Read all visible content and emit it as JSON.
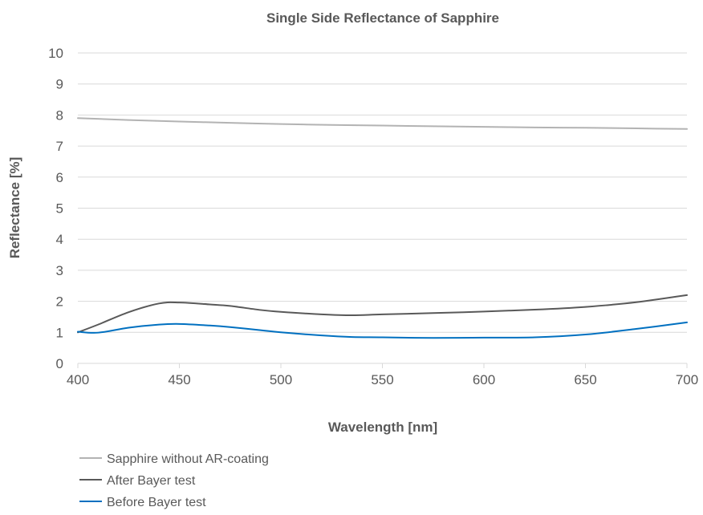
{
  "chart_data": {
    "type": "line",
    "title": "Single Side Reflectance of Sapphire",
    "xlabel": "Wavelength [nm]",
    "ylabel": "Reflectance [%]",
    "xlim": [
      400,
      700
    ],
    "ylim": [
      0,
      10
    ],
    "x_ticks": [
      400,
      450,
      500,
      550,
      600,
      650,
      700
    ],
    "y_ticks": [
      0,
      1,
      2,
      3,
      4,
      5,
      6,
      7,
      8,
      9,
      10
    ],
    "grid": "horizontal",
    "legend_position": "bottom-left",
    "series": [
      {
        "name": "Sapphire without AR-coating",
        "color": "#b3b3b3",
        "x": [
          400,
          425,
          450,
          475,
          500,
          525,
          550,
          575,
          600,
          625,
          650,
          675,
          700
        ],
        "y": [
          7.9,
          7.84,
          7.79,
          7.75,
          7.71,
          7.68,
          7.66,
          7.64,
          7.62,
          7.6,
          7.59,
          7.57,
          7.55
        ]
      },
      {
        "name": "After Bayer test",
        "color": "#595959",
        "x": [
          400,
          410,
          425,
          440,
          450,
          465,
          475,
          490,
          500,
          520,
          535,
          550,
          575,
          600,
          625,
          650,
          675,
          700
        ],
        "y": [
          1.0,
          1.25,
          1.65,
          1.93,
          1.96,
          1.9,
          1.85,
          1.72,
          1.66,
          1.58,
          1.55,
          1.58,
          1.62,
          1.67,
          1.73,
          1.82,
          1.97,
          2.2
        ]
      },
      {
        "name": "Before Bayer test",
        "color": "#0070c0",
        "x": [
          400,
          410,
          425,
          440,
          450,
          465,
          475,
          490,
          500,
          520,
          535,
          550,
          575,
          600,
          625,
          650,
          675,
          700
        ],
        "y": [
          1.02,
          0.99,
          1.15,
          1.25,
          1.27,
          1.22,
          1.17,
          1.07,
          1.0,
          0.9,
          0.85,
          0.84,
          0.82,
          0.83,
          0.84,
          0.93,
          1.11,
          1.32
        ]
      }
    ]
  }
}
